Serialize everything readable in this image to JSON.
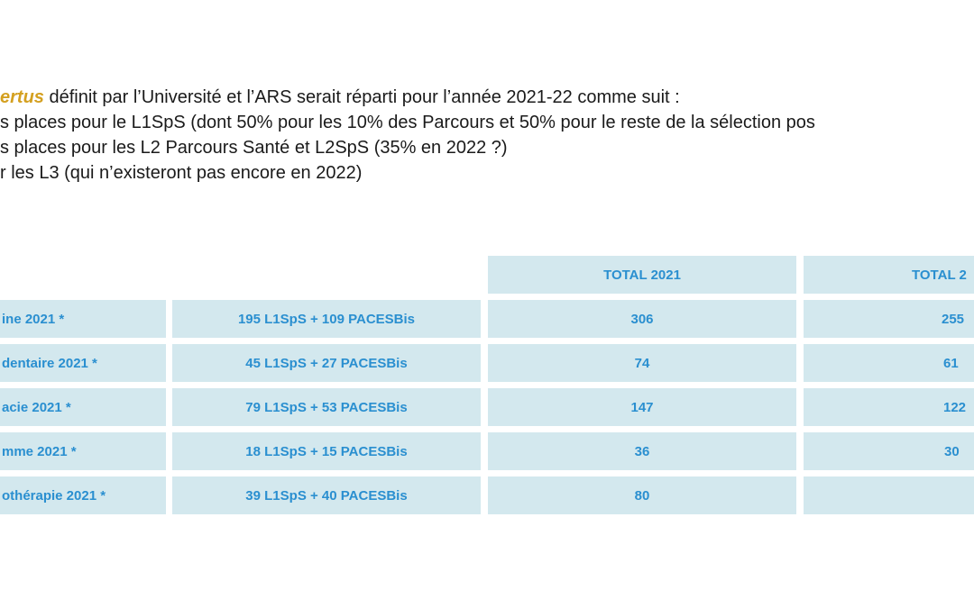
{
  "intro": {
    "accent_word": "ertus",
    "line1_rest": " définit par l’Université et l’ARS serait réparti pour l’année 2021-22 comme suit :",
    "line2": "s places pour le L1SpS (dont 50% pour les 10% des Parcours et 50% pour le reste de la sélection pos",
    "line3": "s places pour les L2 Parcours Santé et L2SpS (35% en 2022 ?)",
    "line4": "r les L3 (qui n’existeront pas encore en 2022)"
  },
  "table": {
    "headers": {
      "total_2021": "TOTAL 2021",
      "total_next": "TOTAL 2"
    },
    "rows": [
      {
        "label": "ine 2021 *",
        "detail": "195 L1SpS + 109 PACESBis",
        "total_2021": "306",
        "total_next": "255"
      },
      {
        "label": "dentaire 2021 *",
        "detail": "45 L1SpS + 27 PACESBis",
        "total_2021": "74",
        "total_next": "61"
      },
      {
        "label": "acie 2021 *",
        "detail": "79 L1SpS + 53 PACESBis",
        "total_2021": "147",
        "total_next": "122"
      },
      {
        "label": "mme 2021 *",
        "detail": "18 L1SpS + 15 PACESBis",
        "total_2021": "36",
        "total_next": "30"
      },
      {
        "label": "othérapie  2021 *",
        "detail": "39 L1SpS + 40 PACESBis",
        "total_2021": "80",
        "total_next": ""
      }
    ]
  }
}
